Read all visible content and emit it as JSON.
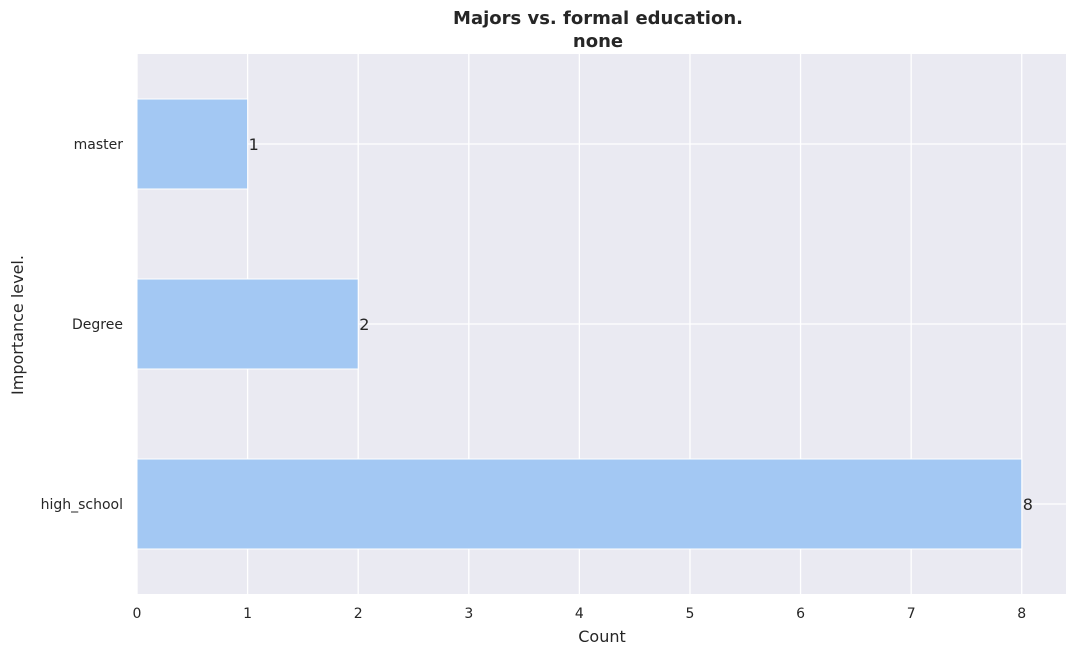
{
  "chart_data": {
    "type": "bar",
    "orientation": "horizontal",
    "title": "Majors vs. formal education.",
    "subtitle": "none",
    "xlabel": "Count",
    "ylabel": "Importance level.",
    "categories": [
      "master",
      "Degree",
      "high_school"
    ],
    "values": [
      1,
      2,
      8
    ],
    "data_labels": [
      "1",
      "2",
      "8"
    ],
    "xticks": [
      "0",
      "1",
      "2",
      "3",
      "4",
      "5",
      "6",
      "7",
      "8"
    ],
    "xlim": [
      0,
      8.4
    ],
    "grid": true,
    "legend": "none",
    "colors": {
      "bar": "#a3c8f3",
      "plot_background": "#eaeaf2",
      "grid": "#ffffff",
      "text": "#262626"
    }
  }
}
